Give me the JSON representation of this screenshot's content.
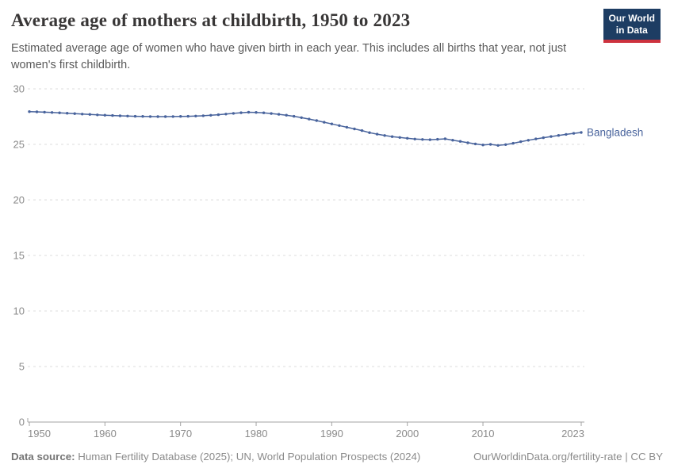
{
  "header": {
    "title": "Average age of mothers at childbirth, 1950 to 2023",
    "subtitle": "Estimated average age of women who have given birth in each year. This includes all births that year, not just women's first childbirth.",
    "logo": {
      "line1": "Our World",
      "line2": "in Data",
      "bg_color": "#1d3d63",
      "accent_color": "#cd323e"
    }
  },
  "chart_data": {
    "type": "line",
    "title": "Average age of mothers at childbirth, 1950 to 2023",
    "xlabel": "",
    "ylabel": "",
    "xlim": [
      1950,
      2023
    ],
    "ylim": [
      0,
      30
    ],
    "x_ticks": [
      1950,
      1960,
      1970,
      1980,
      1990,
      2000,
      2010,
      2023
    ],
    "y_ticks": [
      0,
      5,
      10,
      15,
      20,
      25,
      30
    ],
    "grid": "horizontal-dashed",
    "legend_position": "end-of-line-label",
    "colors": {
      "line": "#48639c",
      "grid": "#dcdcdc",
      "axis": "#a3a3a3",
      "tick_label": "#8b8b8b"
    },
    "series": [
      {
        "name": "Bangladesh",
        "color": "#48639c",
        "x": [
          1950,
          1951,
          1952,
          1953,
          1954,
          1955,
          1956,
          1957,
          1958,
          1959,
          1960,
          1961,
          1962,
          1963,
          1964,
          1965,
          1966,
          1967,
          1968,
          1969,
          1970,
          1971,
          1972,
          1973,
          1974,
          1975,
          1976,
          1977,
          1978,
          1979,
          1980,
          1981,
          1982,
          1983,
          1984,
          1985,
          1986,
          1987,
          1988,
          1989,
          1990,
          1991,
          1992,
          1993,
          1994,
          1995,
          1996,
          1997,
          1998,
          1999,
          2000,
          2001,
          2002,
          2003,
          2004,
          2005,
          2006,
          2007,
          2008,
          2009,
          2010,
          2011,
          2012,
          2013,
          2014,
          2015,
          2016,
          2017,
          2018,
          2019,
          2020,
          2021,
          2022,
          2023
        ],
        "values": [
          27.95,
          27.93,
          27.9,
          27.87,
          27.84,
          27.81,
          27.77,
          27.73,
          27.7,
          27.66,
          27.63,
          27.6,
          27.57,
          27.55,
          27.53,
          27.52,
          27.51,
          27.5,
          27.5,
          27.51,
          27.52,
          27.53,
          27.55,
          27.58,
          27.62,
          27.67,
          27.73,
          27.79,
          27.85,
          27.89,
          27.88,
          27.84,
          27.78,
          27.71,
          27.63,
          27.53,
          27.41,
          27.28,
          27.14,
          26.99,
          26.84,
          26.69,
          26.54,
          26.39,
          26.24,
          26.06,
          25.92,
          25.8,
          25.7,
          25.62,
          25.55,
          25.48,
          25.44,
          25.42,
          25.46,
          25.5,
          25.38,
          25.27,
          25.15,
          25.04,
          24.95,
          25.0,
          24.91,
          24.98,
          25.1,
          25.24,
          25.37,
          25.49,
          25.6,
          25.71,
          25.81,
          25.9,
          25.99,
          26.07
        ]
      }
    ]
  },
  "footer": {
    "source_label": "Data source:",
    "source_text": " Human Fertility Database (2025); UN, World Population Prospects (2024)",
    "credit": "OurWorldinData.org/fertility-rate | CC BY"
  }
}
